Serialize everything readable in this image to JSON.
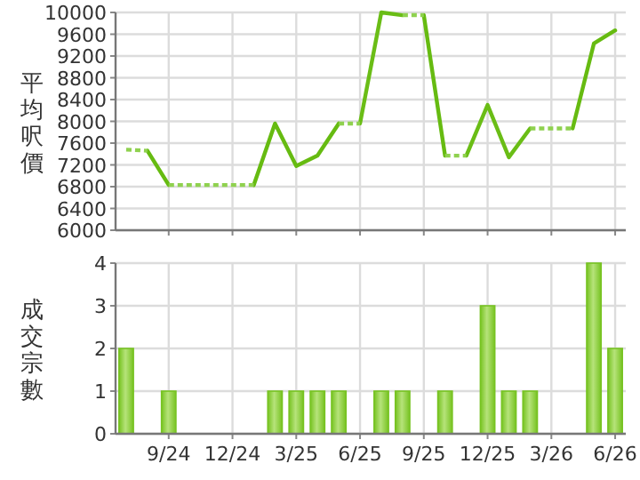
{
  "chart_data": [
    {
      "type": "line",
      "ylabel": "平均呎價",
      "ylim": [
        6000,
        10000
      ],
      "yticks": [
        6000,
        6400,
        6800,
        7200,
        7600,
        8000,
        8400,
        8800,
        9200,
        9600,
        10000
      ],
      "grid": true,
      "tick_labels": "y",
      "series": [
        {
          "color": "#66bb11",
          "line_style": "solid",
          "values": [
            null,
            7460,
            6830,
            null,
            null,
            null,
            6830,
            7960,
            7180,
            7370,
            7960,
            null,
            null,
            null,
            9950,
            7370,
            null,
            null,
            null,
            null,
            null,
            7870,
            9430,
            9670
          ]
        },
        {
          "color": "#6abd16",
          "line_style": "solid",
          "values": [
            null,
            null,
            null,
            null,
            null,
            null,
            null,
            null,
            null,
            null,
            null,
            7960,
            10000,
            9950,
            null,
            null,
            7370,
            8300,
            7340,
            7870,
            null,
            null,
            null,
            null
          ]
        },
        {
          "color": "#8fd14f",
          "line_style": "dotted",
          "values": [
            7480,
            7460,
            null,
            null,
            null,
            null,
            null,
            null,
            null,
            null,
            7960,
            7960,
            null,
            null,
            null,
            7370,
            7370,
            null,
            null,
            null,
            null,
            null,
            null,
            null
          ]
        },
        {
          "color": "#8fd14f",
          "line_style": "dotted",
          "values": [
            null,
            null,
            6830,
            6830,
            6830,
            6830,
            6830,
            null,
            null,
            null,
            null,
            null,
            null,
            9950,
            9950,
            null,
            null,
            null,
            null,
            7870,
            7870,
            7870,
            null,
            null
          ]
        }
      ]
    },
    {
      "type": "bar",
      "ylabel": "成交宗數",
      "categories": [
        null,
        null,
        "9/24",
        null,
        null,
        "12/24",
        null,
        null,
        "3/25",
        null,
        null,
        "6/25",
        null,
        null,
        "9/25",
        null,
        null,
        "12/25",
        null,
        null,
        "3/26",
        null,
        null,
        "6/26"
      ],
      "ylim": [
        0,
        4
      ],
      "yticks": [
        0,
        1,
        2,
        3,
        4
      ],
      "grid": true,
      "color": "#77c322",
      "values": [
        2,
        0,
        1,
        0,
        0,
        0,
        0,
        1,
        1,
        1,
        1,
        0,
        1,
        1,
        0,
        1,
        0,
        3,
        1,
        1,
        0,
        0,
        4,
        2
      ]
    }
  ]
}
